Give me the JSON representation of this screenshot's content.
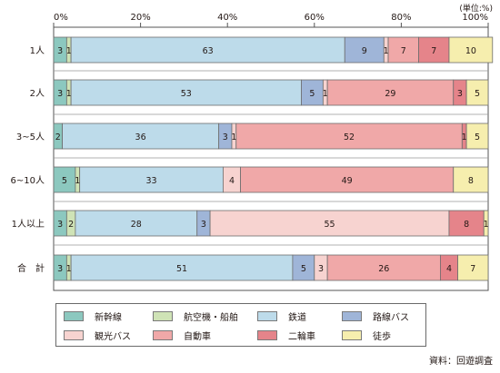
{
  "unit_label": "(単位:%)",
  "source": "資料：回遊調査",
  "chart_data": {
    "type": "bar",
    "orientation": "horizontal",
    "stacked": true,
    "xlim": [
      0,
      100
    ],
    "x_ticks": [
      "0%",
      "20%",
      "40%",
      "60%",
      "80%",
      "100%"
    ],
    "categories": [
      "1人",
      "2人",
      "3~5人",
      "6~10人",
      "1人以上",
      "合　計"
    ],
    "series": [
      {
        "name": "新幹線",
        "color": "#8cc8bf",
        "values": [
          3,
          3,
          2,
          5,
          3,
          3
        ]
      },
      {
        "name": "航空機・船舶",
        "color": "#cfe3b6",
        "values": [
          1,
          1,
          0,
          1,
          2,
          1
        ]
      },
      {
        "name": "鉄道",
        "color": "#bddbea",
        "values": [
          63,
          53,
          36,
          33,
          28,
          51
        ]
      },
      {
        "name": "路線バス",
        "color": "#9fb5d8",
        "values": [
          9,
          5,
          3,
          0,
          3,
          5
        ]
      },
      {
        "name": "観光バス",
        "color": "#f7d3d0",
        "values": [
          1,
          1,
          1,
          4,
          55,
          3
        ]
      },
      {
        "name": "自動車",
        "color": "#f0a8a8",
        "values": [
          7,
          29,
          52,
          49,
          0,
          26
        ]
      },
      {
        "name": "二輪車",
        "color": "#e5848a",
        "values": [
          7,
          3,
          1,
          0,
          8,
          4
        ]
      },
      {
        "name": "徒歩",
        "color": "#f6eeae",
        "values": [
          10,
          5,
          5,
          8,
          1,
          7
        ]
      }
    ],
    "data_labels": [
      [
        "3",
        "1",
        "63",
        "9",
        "1",
        "7",
        "7",
        "10"
      ],
      [
        "3",
        "1",
        "53",
        "5",
        "1",
        "29",
        "3",
        "5"
      ],
      [
        "2",
        "",
        "36",
        "3",
        "1",
        "52",
        "1",
        "5"
      ],
      [
        "5",
        "1",
        "33",
        "",
        "4",
        "49",
        "",
        "8"
      ],
      [
        "3",
        "2",
        "28",
        "3",
        "55",
        "",
        "8",
        "1"
      ],
      [
        "3",
        "1",
        "51",
        "5",
        "3",
        "26",
        "4",
        "7"
      ]
    ],
    "legend": "bottom"
  }
}
